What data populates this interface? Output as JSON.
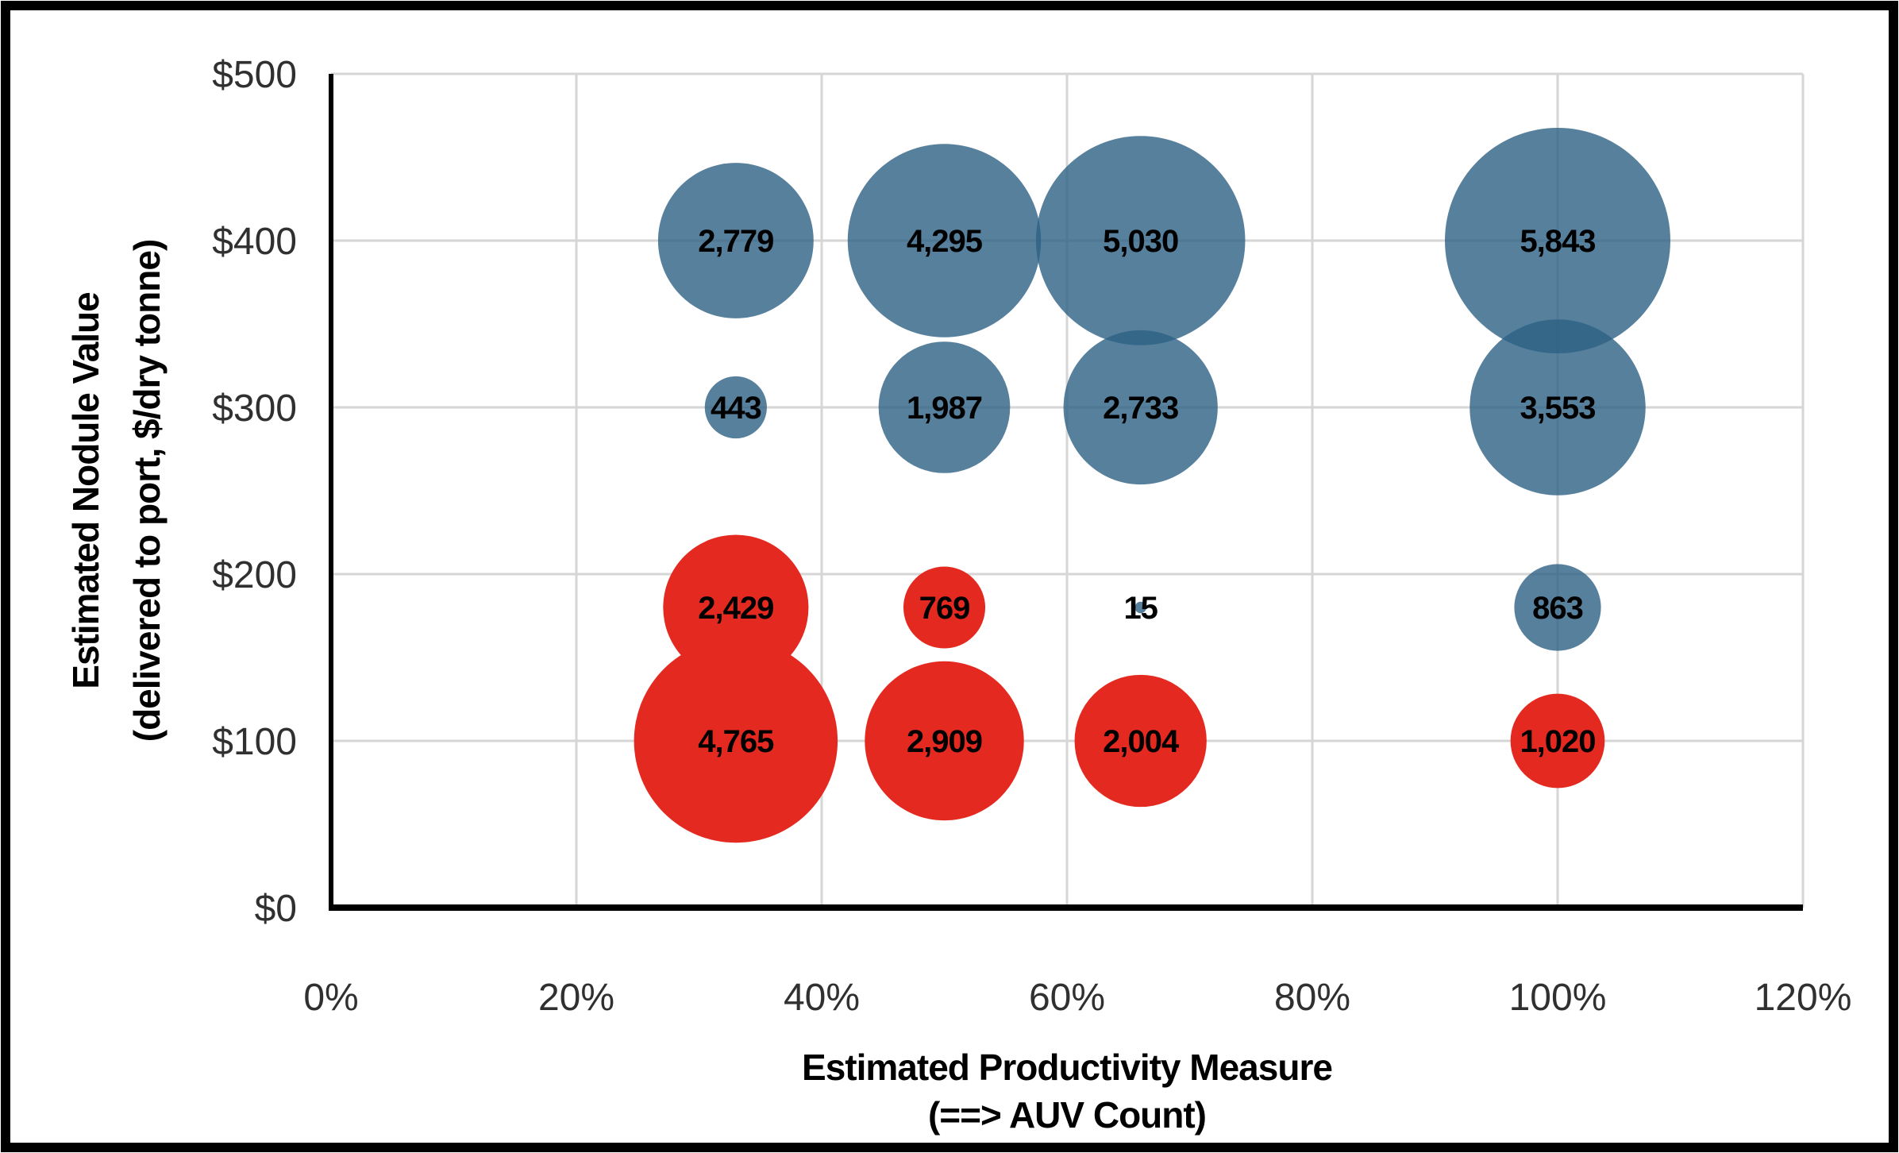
{
  "figure": {
    "border_color": "#000000",
    "background": "#ffffff",
    "gridline_color": "#d6d6d6",
    "axis_line_color": "#000000"
  },
  "chart_data": {
    "type": "bubble",
    "x_axis": {
      "title_line1": "Estimated Productivity Measure",
      "title_line2": "(==> AUV Count)",
      "min": 0,
      "max": 120,
      "tick_step": 20,
      "tick_labels": [
        "0%",
        "20%",
        "40%",
        "60%",
        "80%",
        "100%",
        "120%"
      ],
      "grid": true
    },
    "y_axis": {
      "title_line1": "Estimated Nodule Value",
      "title_line2": "(delivered to port, $/dry tonne)",
      "min": 0,
      "max": 500,
      "tick_step": 100,
      "tick_labels": [
        "$0",
        "$100",
        "$200",
        "$300",
        "$400",
        "$500"
      ],
      "grid": true
    },
    "size_scale": {
      "max_value": 5843,
      "note": "bubble area proportional to value"
    },
    "series": [
      {
        "name": "blue-bubbles",
        "color": "#2d6085",
        "opacity": 0.8,
        "points": [
          {
            "x": 33,
            "y": 400,
            "value": 2779,
            "label": "2,779"
          },
          {
            "x": 50,
            "y": 400,
            "value": 4295,
            "label": "4,295"
          },
          {
            "x": 66,
            "y": 400,
            "value": 5030,
            "label": "5,030"
          },
          {
            "x": 100,
            "y": 400,
            "value": 5843,
            "label": "5,843"
          },
          {
            "x": 33,
            "y": 300,
            "value": 443,
            "label": "443"
          },
          {
            "x": 50,
            "y": 300,
            "value": 1987,
            "label": "1,987"
          },
          {
            "x": 66,
            "y": 300,
            "value": 2733,
            "label": "2,733"
          },
          {
            "x": 100,
            "y": 300,
            "value": 3553,
            "label": "3,553"
          },
          {
            "x": 66,
            "y": 180,
            "value": 15,
            "label": "15"
          },
          {
            "x": 100,
            "y": 180,
            "value": 863,
            "label": "863"
          }
        ]
      },
      {
        "name": "red-bubbles",
        "color": "#e42a20",
        "opacity": 1.0,
        "points": [
          {
            "x": 33,
            "y": 180,
            "value": 2429,
            "label": "2,429"
          },
          {
            "x": 50,
            "y": 180,
            "value": 769,
            "label": "769"
          },
          {
            "x": 33,
            "y": 100,
            "value": 4765,
            "label": "4,765"
          },
          {
            "x": 50,
            "y": 100,
            "value": 2909,
            "label": "2,909"
          },
          {
            "x": 66,
            "y": 100,
            "value": 2004,
            "label": "2,004"
          },
          {
            "x": 100,
            "y": 100,
            "value": 1020,
            "label": "1,020"
          }
        ]
      }
    ]
  }
}
